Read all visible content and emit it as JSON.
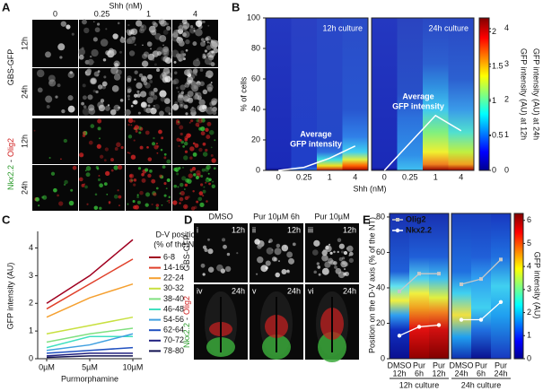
{
  "panel_a": {
    "label": "A",
    "title": "Shh (nM)",
    "columns": [
      "0",
      "0.25",
      "1",
      "4"
    ],
    "groups": [
      {
        "name": [
          "GBS-GFP"
        ],
        "rows": [
          "12h",
          "24h"
        ]
      },
      {
        "name": [
          "Nkx2.2",
          "-",
          "Olig2"
        ],
        "rows": [
          "12h",
          "24h"
        ]
      }
    ]
  },
  "panel_d": {
    "label": "D",
    "columns": [
      "DMSO",
      "Pur 10µM 6h",
      "Pur 10µM"
    ],
    "numerals": [
      "i",
      "ii",
      "iii",
      "iv",
      "v",
      "vi"
    ],
    "rows": [
      {
        "name": [
          "GBS-GFP"
        ],
        "time": "12h"
      },
      {
        "name": [
          "Nkx2.2",
          "-",
          "Olig2"
        ],
        "time": "24h"
      }
    ]
  },
  "chart_data": [
    {
      "label": "B",
      "type": "heatmap",
      "ylabel": "% of cells",
      "xlabel": "Shh (nM)",
      "categories": [
        "0",
        "0.25",
        "1",
        "4"
      ],
      "ylim": [
        0,
        100
      ],
      "yticks": [
        0,
        20,
        40,
        60,
        80,
        100
      ],
      "annotation": [
        "Average",
        "GFP intensity"
      ],
      "panels": [
        {
          "title": "12h culture",
          "line": [
            0,
            2,
            8,
            16
          ]
        },
        {
          "title": "24h culture",
          "line": [
            0,
            18,
            36,
            26
          ]
        }
      ],
      "colorbars": [
        {
          "label": "GFP intensity (AU) at 12h",
          "lim": [
            0,
            2.2
          ],
          "ticks": [
            0,
            0.5,
            1,
            1.5,
            2
          ]
        },
        {
          "label": "GFP intensity (AU) at 24h",
          "lim": [
            0,
            4.3
          ],
          "ticks": [
            0,
            1,
            2,
            3,
            4
          ]
        }
      ]
    },
    {
      "label": "C",
      "type": "line",
      "ylabel": "GFP intensity (AU)",
      "xlabel": "Purmorphamine",
      "categories": [
        "0µM",
        "5µM",
        "10µM"
      ],
      "ylim": [
        0,
        4.6
      ],
      "yticks": [
        0,
        1,
        2,
        3,
        4
      ],
      "legend_title": [
        "D-V position",
        "(% of the NT)"
      ],
      "series": [
        {
          "name": "6-8",
          "color": "#a00020",
          "values": [
            2.0,
            3.0,
            4.3
          ]
        },
        {
          "name": "14-16",
          "color": "#e0402a",
          "values": [
            1.8,
            2.7,
            3.6
          ]
        },
        {
          "name": "22-24",
          "color": "#f5a030",
          "values": [
            1.5,
            2.2,
            2.7
          ]
        },
        {
          "name": "30-32",
          "color": "#c8e040",
          "values": [
            0.9,
            1.2,
            1.5
          ]
        },
        {
          "name": "38-40",
          "color": "#80e080",
          "values": [
            0.6,
            0.9,
            1.1
          ]
        },
        {
          "name": "46-48",
          "color": "#40e0c0",
          "values": [
            0.4,
            0.8,
            0.8
          ]
        },
        {
          "name": "54-56",
          "color": "#40a0e0",
          "values": [
            0.3,
            0.5,
            0.9
          ]
        },
        {
          "name": "62-64",
          "color": "#2050c0",
          "values": [
            0.2,
            0.3,
            0.4
          ]
        },
        {
          "name": "70-72",
          "color": "#202080",
          "values": [
            0.1,
            0.2,
            0.2
          ]
        },
        {
          "name": "78-80",
          "color": "#101050",
          "values": [
            0.05,
            0.1,
            0.1
          ]
        }
      ]
    },
    {
      "label": "E",
      "type": "heatmap",
      "ylabel": "Position on the D-V axis (% of the NT)",
      "ylim": [
        0,
        82
      ],
      "yticks": [
        0,
        20,
        40,
        60,
        80
      ],
      "panels": [
        {
          "title": "12h culture",
          "categories": [
            [
              "DMSO",
              "12h"
            ],
            [
              "Pur",
              "6h"
            ],
            [
              "Pur",
              "12h"
            ]
          ]
        },
        {
          "title": "24h culture",
          "categories": [
            [
              "DMSO",
              "24h"
            ],
            [
              "Pur",
              "6h"
            ],
            [
              "Pur",
              "24h"
            ]
          ]
        }
      ],
      "series": [
        {
          "name": "Olig2",
          "color": "#c8c8c8",
          "values": [
            38,
            48,
            48,
            42,
            45,
            56
          ]
        },
        {
          "name": "Nkx2.2",
          "color": "#ffffff",
          "values": [
            13,
            18,
            19,
            22,
            22,
            32
          ]
        }
      ],
      "colorbar": {
        "label": "GFP intensity (AU)",
        "lim": [
          0,
          6.3
        ],
        "ticks": [
          0,
          1,
          2,
          3,
          4,
          5,
          6
        ]
      }
    }
  ]
}
